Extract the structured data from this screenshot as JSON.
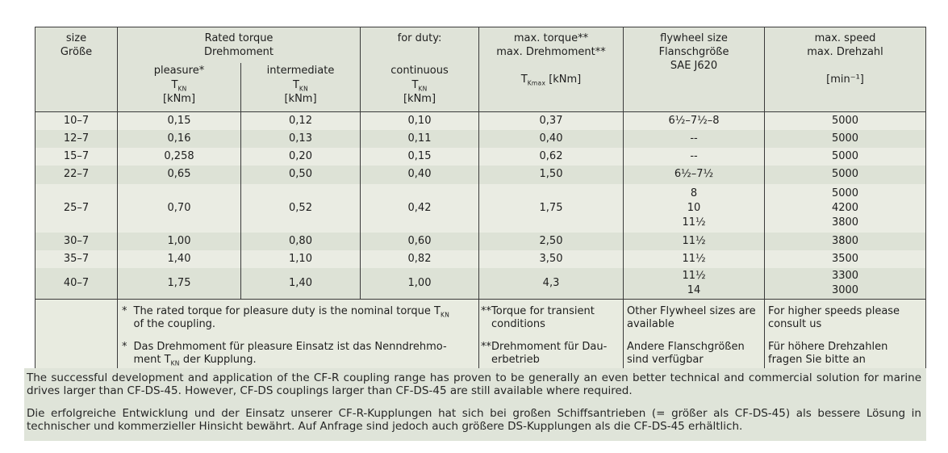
{
  "table": {
    "header": {
      "size_l1": "size",
      "size_l2": "Größe",
      "rated_l1": "Rated torque",
      "rated_l2": "Drehmoment",
      "pleasure": "pleasure*",
      "intermediate": "intermediate",
      "for_duty": "for duty:",
      "continuous": "continuous",
      "t": "T",
      "kn": "KN",
      "kmax": "Kmax",
      "knm": "[kNm]",
      "max_torque_l1": "max. torque**",
      "max_torque_l2": "max. Drehmoment**",
      "flywheel_l1": "flywheel size",
      "flywheel_l2": "Flanschgröße",
      "flywheel_l3": "SAE J620",
      "speed_l1": "max. speed",
      "speed_l2": "max. Drehzahl",
      "speed_unit": "[min⁻¹]"
    },
    "rows": [
      {
        "size": "10–7",
        "pleasure": "0,15",
        "intermediate": "0,12",
        "continuous": "0,10",
        "max_torque": "0,37",
        "flywheel": "6½–7½–8",
        "speed": "5000"
      },
      {
        "size": "12–7",
        "pleasure": "0,16",
        "intermediate": "0,13",
        "continuous": "0,11",
        "max_torque": "0,40",
        "flywheel": "--",
        "speed": "5000"
      },
      {
        "size": "15–7",
        "pleasure": "0,258",
        "intermediate": "0,20",
        "continuous": "0,15",
        "max_torque": "0,62",
        "flywheel": "--",
        "speed": "5000"
      },
      {
        "size": "22–7",
        "pleasure": "0,65",
        "intermediate": "0,50",
        "continuous": "0,40",
        "max_torque": "1,50",
        "flywheel": "6½–7½",
        "speed": "5000"
      },
      {
        "size": "25–7",
        "pleasure": "0,70",
        "intermediate": "0,52",
        "continuous": "0,42",
        "max_torque": "1,75",
        "flywheel": "8\n10\n11½",
        "speed": "5000\n4200\n3800"
      },
      {
        "size": "30–7",
        "pleasure": "1,00",
        "intermediate": "0,80",
        "continuous": "0,60",
        "max_torque": "2,50",
        "flywheel": "11½",
        "speed": "3800"
      },
      {
        "size": "35–7",
        "pleasure": "1,40",
        "intermediate": "1,10",
        "continuous": "0,82",
        "max_torque": "3,50",
        "flywheel": "11½",
        "speed": "3500"
      },
      {
        "size": "40–7",
        "pleasure": "1,75",
        "intermediate": "1,40",
        "continuous": "1,00",
        "max_torque": "4,3",
        "flywheel": "11½\n14",
        "speed": "3300\n3000"
      }
    ],
    "footnotes": {
      "main": [
        {
          "star": "*",
          "pre": "The rated torque for pleasure duty is the nominal torque T",
          "sub": "KN",
          "post": "\nof the coupling."
        },
        {
          "star": "*",
          "pre": "Das Drehmoment für pleasure Einsatz ist das Nenndrehmo-\nment T",
          "sub": "KN",
          "post": " der Kupplung."
        }
      ],
      "torque": [
        {
          "prefix": "**",
          "text": "Torque for transient\nconditions"
        },
        {
          "prefix": "**",
          "text": "Drehmoment für Dau-\nerbetrieb"
        }
      ],
      "flywheel": [
        "Other Flywheel sizes are\navailable",
        "Andere Flanschgrößen\nsind verfügbar"
      ],
      "speed": [
        "For higher speeds please\nconsult us",
        "Für höhere Drehzahlen\nfragen Sie bitte an"
      ]
    }
  },
  "paragraphs": {
    "en": "The successful development and application of the CF-R coupling range has proven to be generally an even better technical and commercial solution for marine drives larger than CF-DS-45. However, CF-DS couplings larger than CF-DS-45 are still available where required.",
    "de": "Die erfolgreiche Entwicklung und der Einsatz unserer CF-R-Kupplungen hat sich bei großen Schiffsantrieben (= größer als CF-DS-45) als bessere Lösung in technischer und kommerzieller Hinsicht bewährt. Auf Anfrage sind jedoch auch größere DS-Kupplungen als die CF-DS-45 erhältlich."
  },
  "colors": {
    "border": "#3a3a3a",
    "header_bg": "#dfe3d8",
    "row_light_bg": "#eaece3",
    "row_dark_bg": "#dde2d6",
    "footnote_bg": "#e8ebe0",
    "paragraph_bg": "#dfe4d9"
  }
}
